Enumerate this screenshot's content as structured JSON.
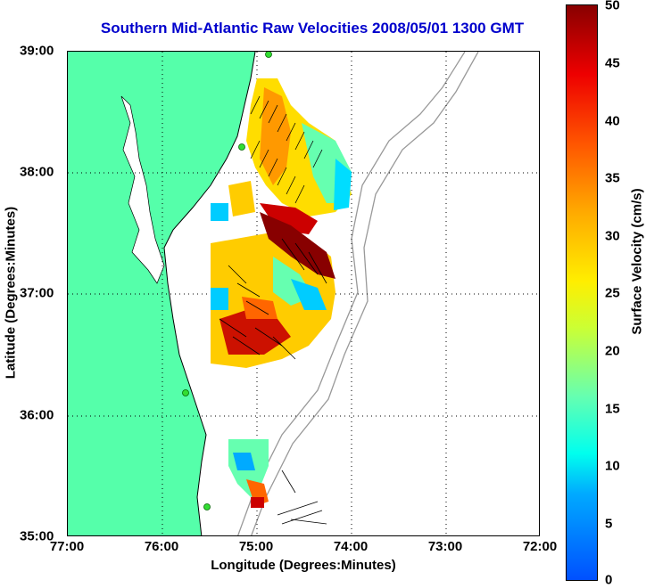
{
  "title": "Southern Mid-Atlantic Raw Velocities 2008/05/01 1300 GMT",
  "xlabel": "Longitude (Degrees:Minutes)",
  "ylabel": "Latitude (Degrees:Minutes)",
  "colorbar_label": "Surface Velocity (cm/s)",
  "x_ticks": [
    "77:00",
    "76:00",
    "75:00",
    "74:00",
    "73:00",
    "72:00"
  ],
  "y_ticks": [
    "39:00",
    "38:00",
    "37:00",
    "36:00",
    "35:00"
  ],
  "colorbar_ticks": [
    "50",
    "45",
    "40",
    "35",
    "30",
    "25",
    "20",
    "15",
    "10",
    "5",
    "0"
  ],
  "colors": {
    "land": "#55ffaa",
    "title": "#0000cc",
    "station": "#33dd33",
    "bathymetry": "#999999"
  }
}
